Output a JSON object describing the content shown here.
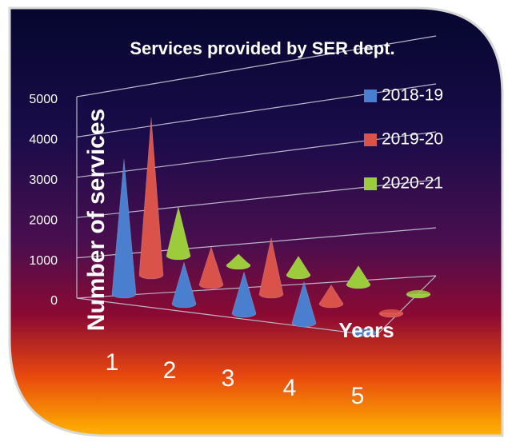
{
  "chart_data": {
    "type": "cone3d",
    "title": "Services provided by SER dept.",
    "y_label": "Number of services",
    "x_label": "Years",
    "categories": [
      "1",
      "2",
      "3",
      "4",
      "5"
    ],
    "series": [
      {
        "name": "2018-19",
        "color": "#4a7fd0",
        "values": [
          3600,
          1100,
          1100,
          1100,
          0
        ]
      },
      {
        "name": "2019-20",
        "color": "#d9534a",
        "values": [
          4200,
          1000,
          1500,
          500,
          0
        ]
      },
      {
        "name": "2020-21",
        "color": "#9ccc3c",
        "values": [
          1300,
          300,
          500,
          500,
          0
        ]
      }
    ],
    "ylim": [
      0,
      5000
    ],
    "yticks": [
      0,
      1000,
      2000,
      3000,
      4000,
      5000
    ],
    "grid": true,
    "legend": "right"
  }
}
